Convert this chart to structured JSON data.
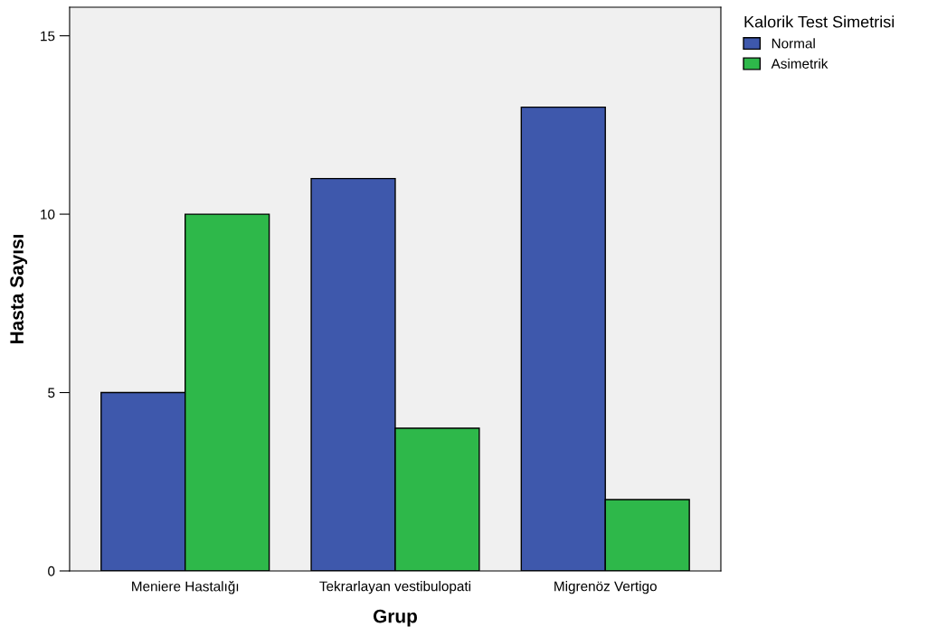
{
  "chart_data": {
    "type": "bar",
    "xlabel": "Grup",
    "ylabel": "Hasta Sayısı",
    "legend_title": "Kalorik Test Simetrisi",
    "categories": [
      "Meniere Hastalığı",
      "Tekrarlayan vestibulopati",
      "Migrenöz Vertigo"
    ],
    "series": [
      {
        "name": "Normal",
        "color": "#3e58ac",
        "values": [
          5,
          11,
          13
        ]
      },
      {
        "name": "Asimetrik",
        "color": "#2eb84a",
        "values": [
          10,
          4,
          2
        ]
      }
    ],
    "ylim": [
      0,
      15.8
    ],
    "yticks": [
      0,
      5,
      10,
      15
    ],
    "grid": false,
    "legend": "top right"
  }
}
